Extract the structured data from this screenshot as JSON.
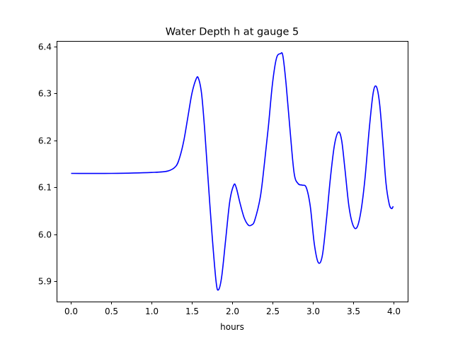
{
  "chart_data": {
    "type": "line",
    "title": "Water Depth h at gauge 5",
    "xlabel": "hours",
    "ylabel": "",
    "xlim": [
      -0.18,
      4.18
    ],
    "ylim": [
      5.857,
      6.412
    ],
    "xticks": [
      0.0,
      0.5,
      1.0,
      1.5,
      2.0,
      2.5,
      3.0,
      3.5,
      4.0
    ],
    "xtick_labels": [
      "0.0",
      "0.5",
      "1.0",
      "1.5",
      "2.0",
      "2.5",
      "3.0",
      "3.5",
      "4.0"
    ],
    "yticks": [
      5.9,
      6.0,
      6.1,
      6.2,
      6.3,
      6.4
    ],
    "ytick_labels": [
      "5.9",
      "6.0",
      "6.1",
      "6.2",
      "6.3",
      "6.4"
    ],
    "grid": false,
    "series": [
      {
        "color": "#0000ff",
        "x": [
          0.0,
          0.5,
          1.0,
          1.2,
          1.3,
          1.35,
          1.4,
          1.45,
          1.5,
          1.55,
          1.58,
          1.62,
          1.66,
          1.7,
          1.75,
          1.8,
          1.83,
          1.87,
          1.92,
          1.97,
          2.02,
          2.05,
          2.1,
          2.15,
          2.2,
          2.24,
          2.28,
          2.35,
          2.4,
          2.45,
          2.5,
          2.55,
          2.6,
          2.63,
          2.67,
          2.72,
          2.77,
          2.82,
          2.87,
          2.92,
          2.97,
          3.02,
          3.07,
          3.12,
          3.17,
          3.22,
          3.27,
          3.32,
          3.36,
          3.4,
          3.45,
          3.5,
          3.55,
          3.6,
          3.65,
          3.7,
          3.75,
          3.79,
          3.83,
          3.87,
          3.91,
          3.95,
          3.98,
          4.0
        ],
        "y": [
          6.13,
          6.13,
          6.132,
          6.135,
          6.145,
          6.165,
          6.2,
          6.25,
          6.3,
          6.33,
          6.333,
          6.3,
          6.22,
          6.12,
          6.0,
          5.9,
          5.882,
          5.91,
          5.99,
          6.07,
          6.105,
          6.1,
          6.065,
          6.035,
          6.02,
          6.02,
          6.03,
          6.08,
          6.15,
          6.23,
          6.32,
          6.375,
          6.385,
          6.38,
          6.32,
          6.22,
          6.13,
          6.108,
          6.105,
          6.1,
          6.06,
          5.98,
          5.94,
          5.955,
          6.03,
          6.12,
          6.19,
          6.218,
          6.2,
          6.14,
          6.06,
          6.02,
          6.015,
          6.05,
          6.12,
          6.22,
          6.3,
          6.315,
          6.28,
          6.2,
          6.11,
          6.065,
          6.055,
          6.06
        ]
      }
    ]
  }
}
